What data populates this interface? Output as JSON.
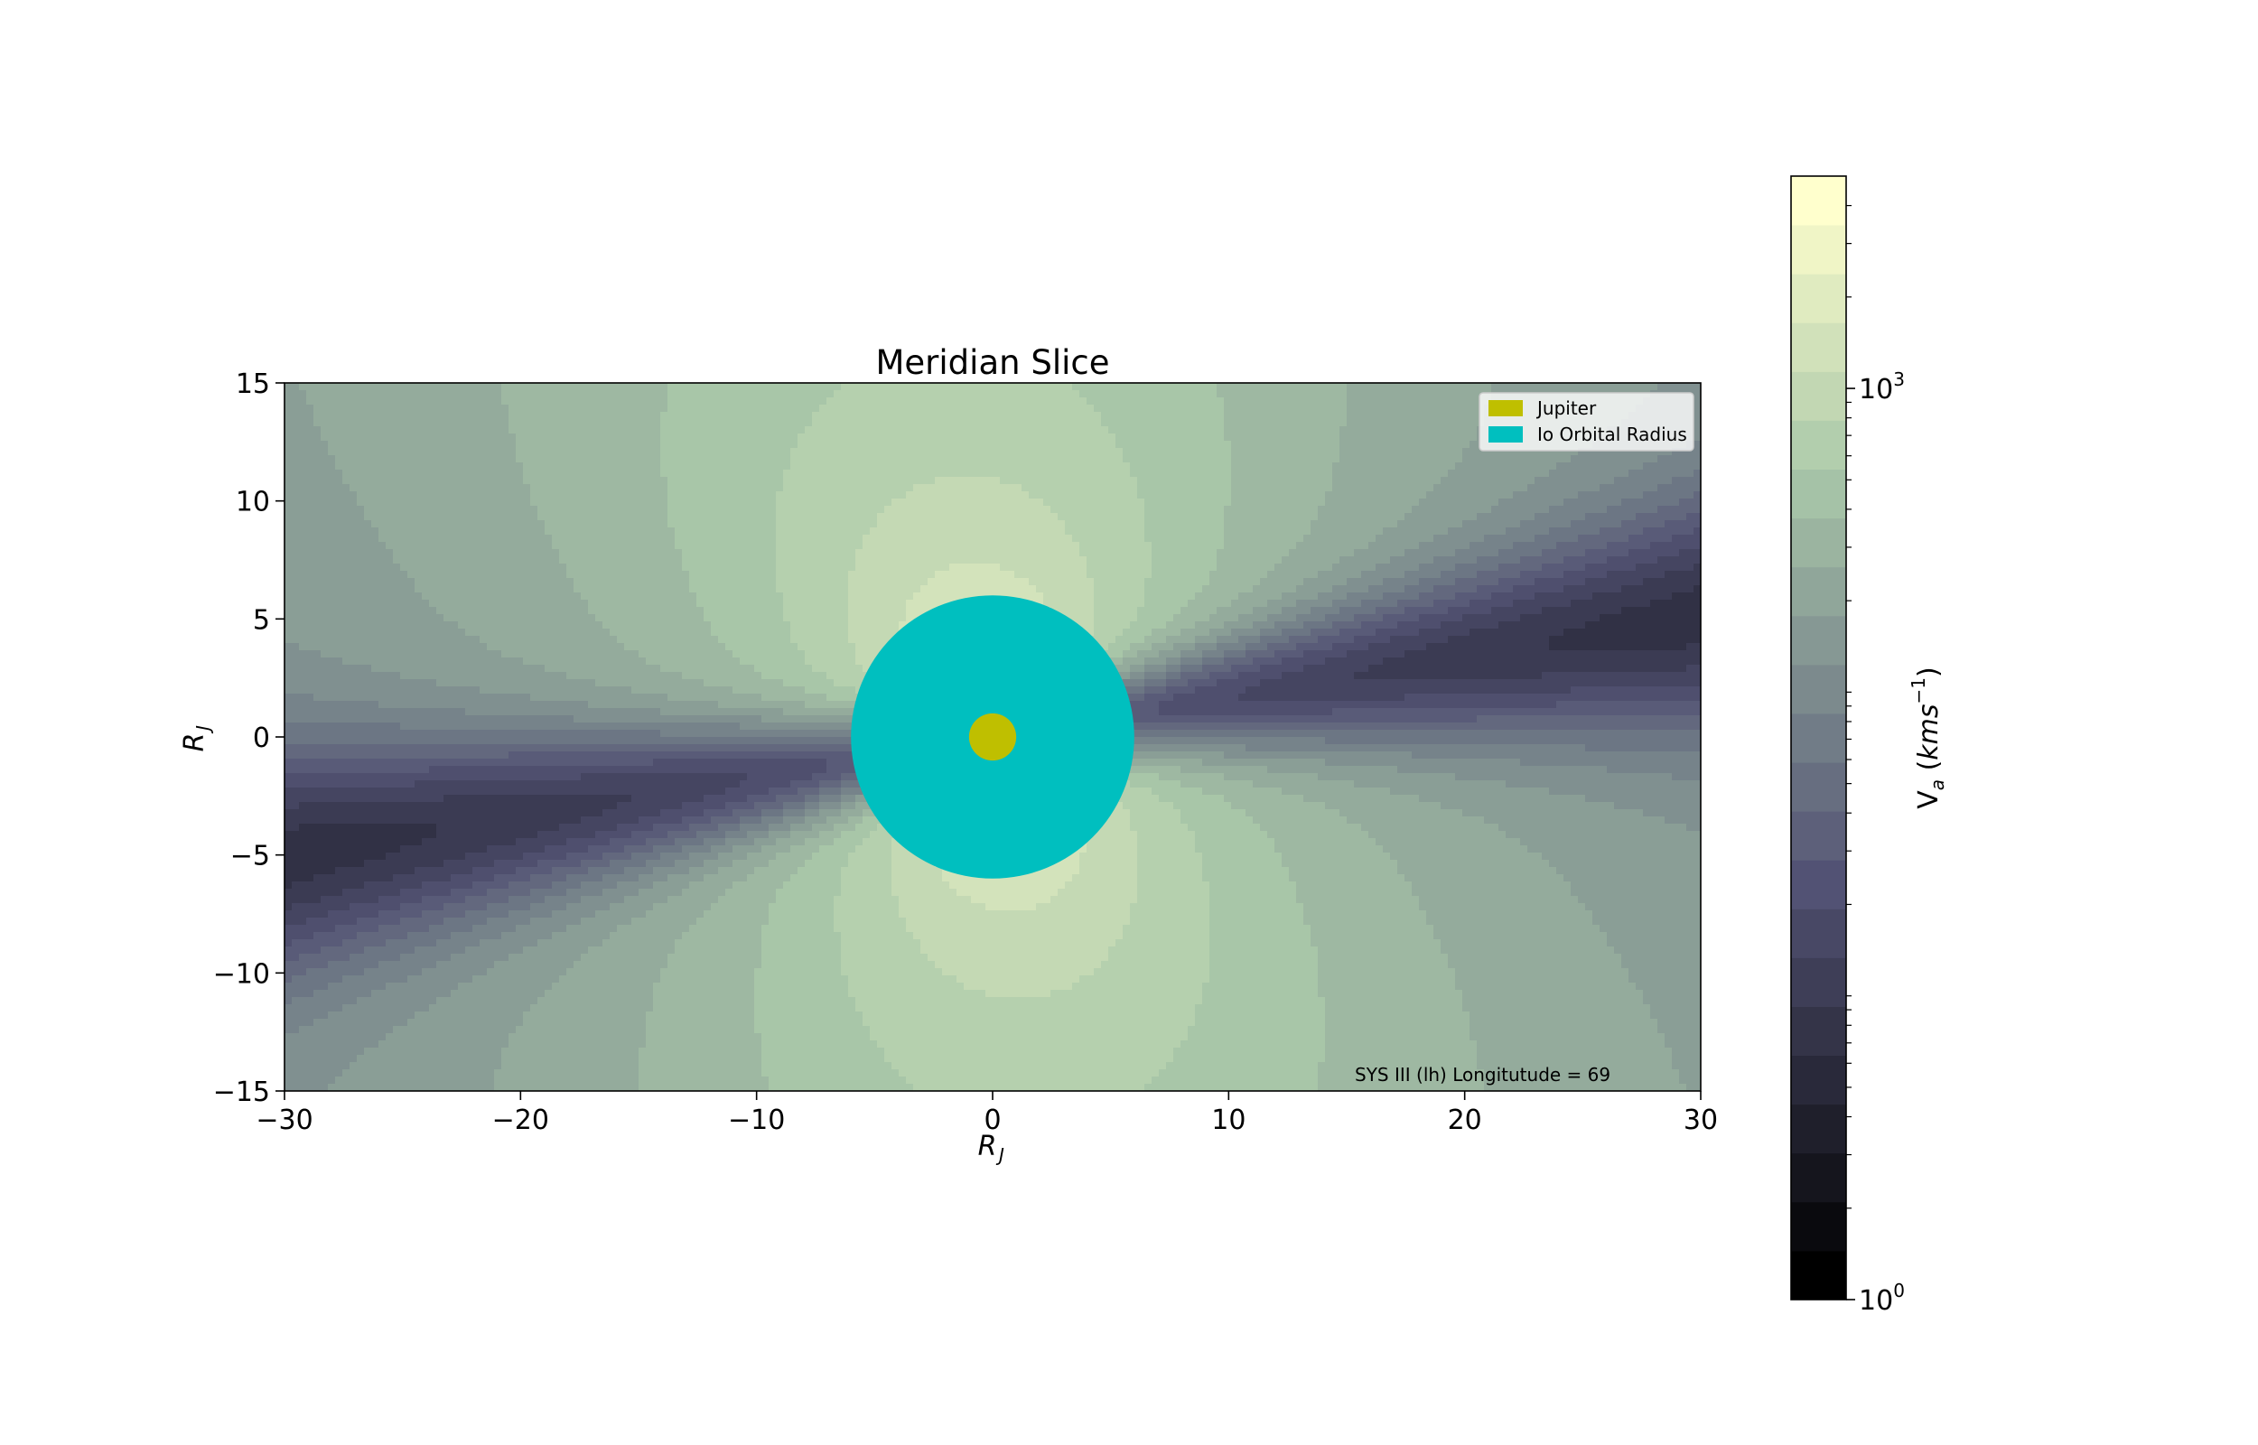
{
  "chart_data": {
    "type": "contour",
    "title": "Meridian Slice",
    "xlabel": "R_J",
    "ylabel": "R_J",
    "xlim": [
      -30,
      30
    ],
    "ylim": [
      -15,
      15
    ],
    "xticks": [
      "−30",
      "−20",
      "−10",
      "0",
      "10",
      "20",
      "30"
    ],
    "yticks": [
      "15",
      "10",
      "5",
      "0",
      "−5",
      "−10",
      "−15"
    ],
    "xtick_values": [
      -30,
      -20,
      -10,
      0,
      10,
      20,
      30
    ],
    "ytick_values": [
      15,
      10,
      5,
      0,
      -5,
      -10,
      -15
    ],
    "annotation": "SYS III (lh) Longitutude = 69",
    "legend": {
      "placement": "top-right",
      "entries": [
        {
          "label": "Jupiter",
          "color": "#bfbf00"
        },
        {
          "label": "Io Orbital Radius",
          "color": "#00bfbf"
        }
      ]
    },
    "circles": [
      {
        "name": "Io Orbital Radius",
        "cx": 0,
        "cy": 0,
        "r": 6.0,
        "color": "#00bfbf"
      },
      {
        "name": "Jupiter",
        "cx": 0,
        "cy": 0,
        "r": 1.0,
        "color": "#bfbf00"
      }
    ],
    "colorbar": {
      "label": "V_a (kms^-1)",
      "scale": "log",
      "range": [
        1,
        5000
      ],
      "tick_values": [
        1,
        1000
      ],
      "colormap": "bone",
      "levels": 23
    },
    "field": {
      "description_free": true,
      "dipole_tilt_deg": 9.6,
      "contour_levels": 23
    }
  }
}
